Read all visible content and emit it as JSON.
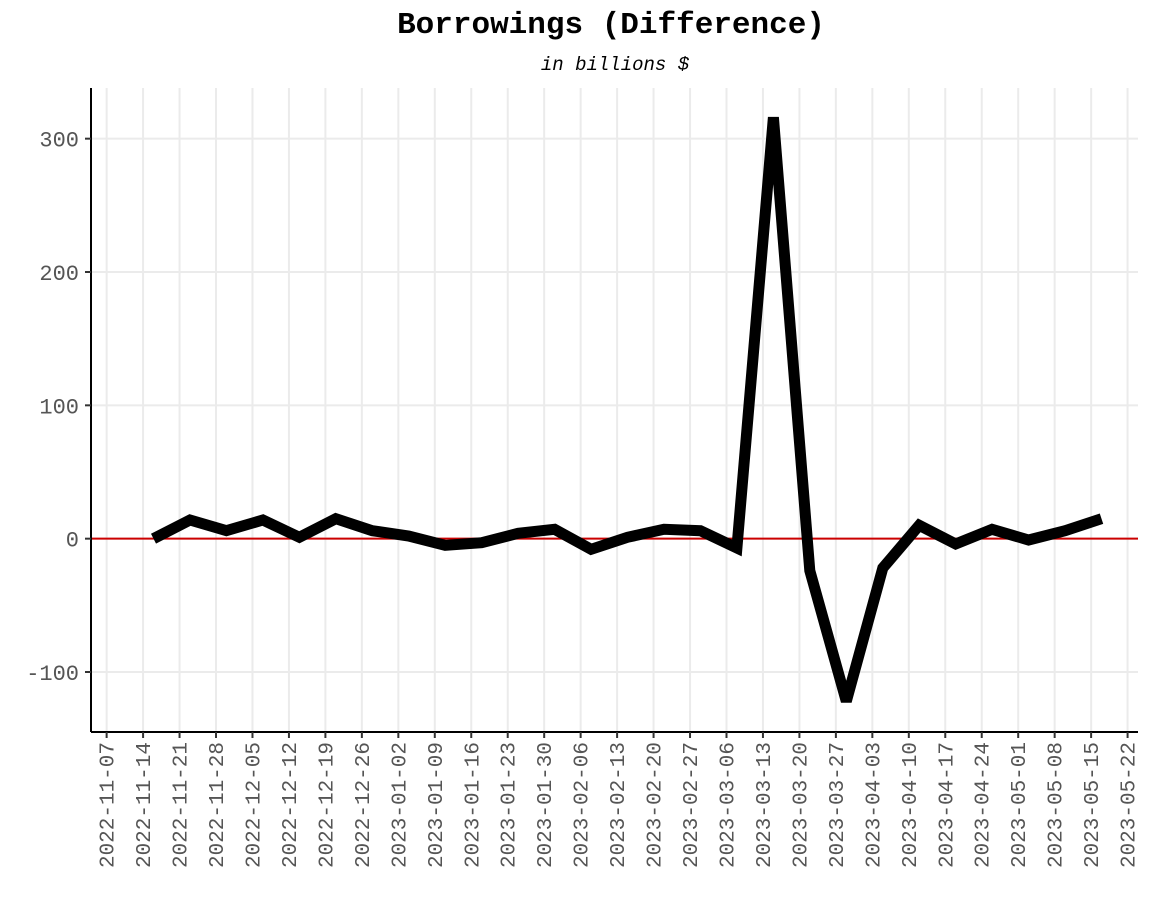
{
  "chart_data": {
    "type": "line",
    "title": "Borrowings (Difference)",
    "subtitle": "in billions $",
    "xlabel": "",
    "ylabel": "",
    "ylim": [
      -145,
      338
    ],
    "yticks": [
      -100,
      0,
      100,
      200,
      300
    ],
    "x_ticks": [
      "2022-11-07",
      "2022-11-14",
      "2022-11-21",
      "2022-11-28",
      "2022-12-05",
      "2022-12-12",
      "2022-12-19",
      "2022-12-26",
      "2023-01-02",
      "2023-01-09",
      "2023-01-16",
      "2023-01-23",
      "2023-01-30",
      "2023-02-06",
      "2023-02-13",
      "2023-02-20",
      "2023-02-27",
      "2023-03-06",
      "2023-03-13",
      "2023-03-20",
      "2023-03-27",
      "2023-04-03",
      "2023-04-10",
      "2023-04-17",
      "2023-04-24",
      "2023-05-01",
      "2023-05-08",
      "2023-05-15",
      "2023-05-22"
    ],
    "xlim": [
      "2022-11-07",
      "2023-05-22"
    ],
    "reference_line": {
      "y": 0,
      "color": "#cc0000"
    },
    "grid": true,
    "series": [
      {
        "color": "#000000",
        "x": [
          "2022-11-16",
          "2022-11-23",
          "2022-11-30",
          "2022-12-07",
          "2022-12-14",
          "2022-12-21",
          "2022-12-28",
          "2023-01-04",
          "2023-01-11",
          "2023-01-18",
          "2023-01-25",
          "2023-02-01",
          "2023-02-08",
          "2023-02-15",
          "2023-02-22",
          "2023-03-01",
          "2023-03-08",
          "2023-03-15",
          "2023-03-22",
          "2023-03-29",
          "2023-04-05",
          "2023-04-12",
          "2023-04-19",
          "2023-04-26",
          "2023-05-03",
          "2023-05-10",
          "2023-05-17"
        ],
        "y": [
          0,
          14,
          6,
          14,
          1,
          15,
          6,
          2,
          -5,
          -3,
          4,
          7,
          -8,
          1,
          7,
          6,
          -7,
          316,
          -24,
          -122,
          -22,
          10,
          -4,
          7,
          -1,
          6,
          15
        ]
      }
    ]
  }
}
